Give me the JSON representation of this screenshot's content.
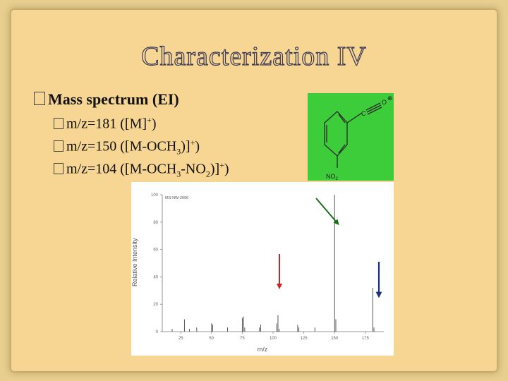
{
  "slide": {
    "title": "Characterization IV",
    "main_bullet": "Mass spectrum (EI)",
    "items": [
      {
        "prefix": "m/z=181 ([M]",
        "sup": "+",
        "suffix": ")"
      },
      {
        "prefix": "m/z=150 ([M-OCH",
        "sub1": "3",
        "mid": ")]",
        "sup": "+",
        "suffix": ")"
      },
      {
        "prefix": "m/z=104 ([M-OCH",
        "sub1": "3",
        "mid": "-NO",
        "sub2": "2",
        "mid2": ")]",
        "sup": "+",
        "suffix": ")"
      }
    ]
  },
  "molecule": {
    "carbon_label": "C",
    "oxygen_label": "O",
    "charge": "⊕",
    "nitro_label": "NO",
    "nitro_sub": "2",
    "background_color": "#3dcc3a"
  },
  "chart_data": {
    "type": "bar",
    "legend_text": "MS-NW-2066",
    "xlabel": "m/z",
    "ylabel": "Relative Intensity",
    "xlim": [
      10,
      190
    ],
    "ylim": [
      0,
      100
    ],
    "x_ticks": [
      25,
      50,
      75,
      100,
      125,
      150,
      175
    ],
    "y_ticks": [
      0,
      20,
      40,
      60,
      80,
      100
    ],
    "peaks": [
      {
        "mz": 18,
        "intensity": 2
      },
      {
        "mz": 28,
        "intensity": 9
      },
      {
        "mz": 32,
        "intensity": 2
      },
      {
        "mz": 38,
        "intensity": 3
      },
      {
        "mz": 50,
        "intensity": 6
      },
      {
        "mz": 51,
        "intensity": 5
      },
      {
        "mz": 63,
        "intensity": 3
      },
      {
        "mz": 75,
        "intensity": 10
      },
      {
        "mz": 76,
        "intensity": 11
      },
      {
        "mz": 77,
        "intensity": 3
      },
      {
        "mz": 89,
        "intensity": 3
      },
      {
        "mz": 90,
        "intensity": 5
      },
      {
        "mz": 103,
        "intensity": 6
      },
      {
        "mz": 104,
        "intensity": 12
      },
      {
        "mz": 105,
        "intensity": 2
      },
      {
        "mz": 120,
        "intensity": 5
      },
      {
        "mz": 121,
        "intensity": 3
      },
      {
        "mz": 134,
        "intensity": 3
      },
      {
        "mz": 150,
        "intensity": 100
      },
      {
        "mz": 151,
        "intensity": 9
      },
      {
        "mz": 181,
        "intensity": 32
      },
      {
        "mz": 182,
        "intensity": 3
      }
    ],
    "annotation_arrows": [
      {
        "name": "red-arrow",
        "color": "#cc2222"
      },
      {
        "name": "green-arrow",
        "color": "#1a6e1a"
      },
      {
        "name": "blue-arrow",
        "color": "#1a2f80"
      }
    ]
  }
}
